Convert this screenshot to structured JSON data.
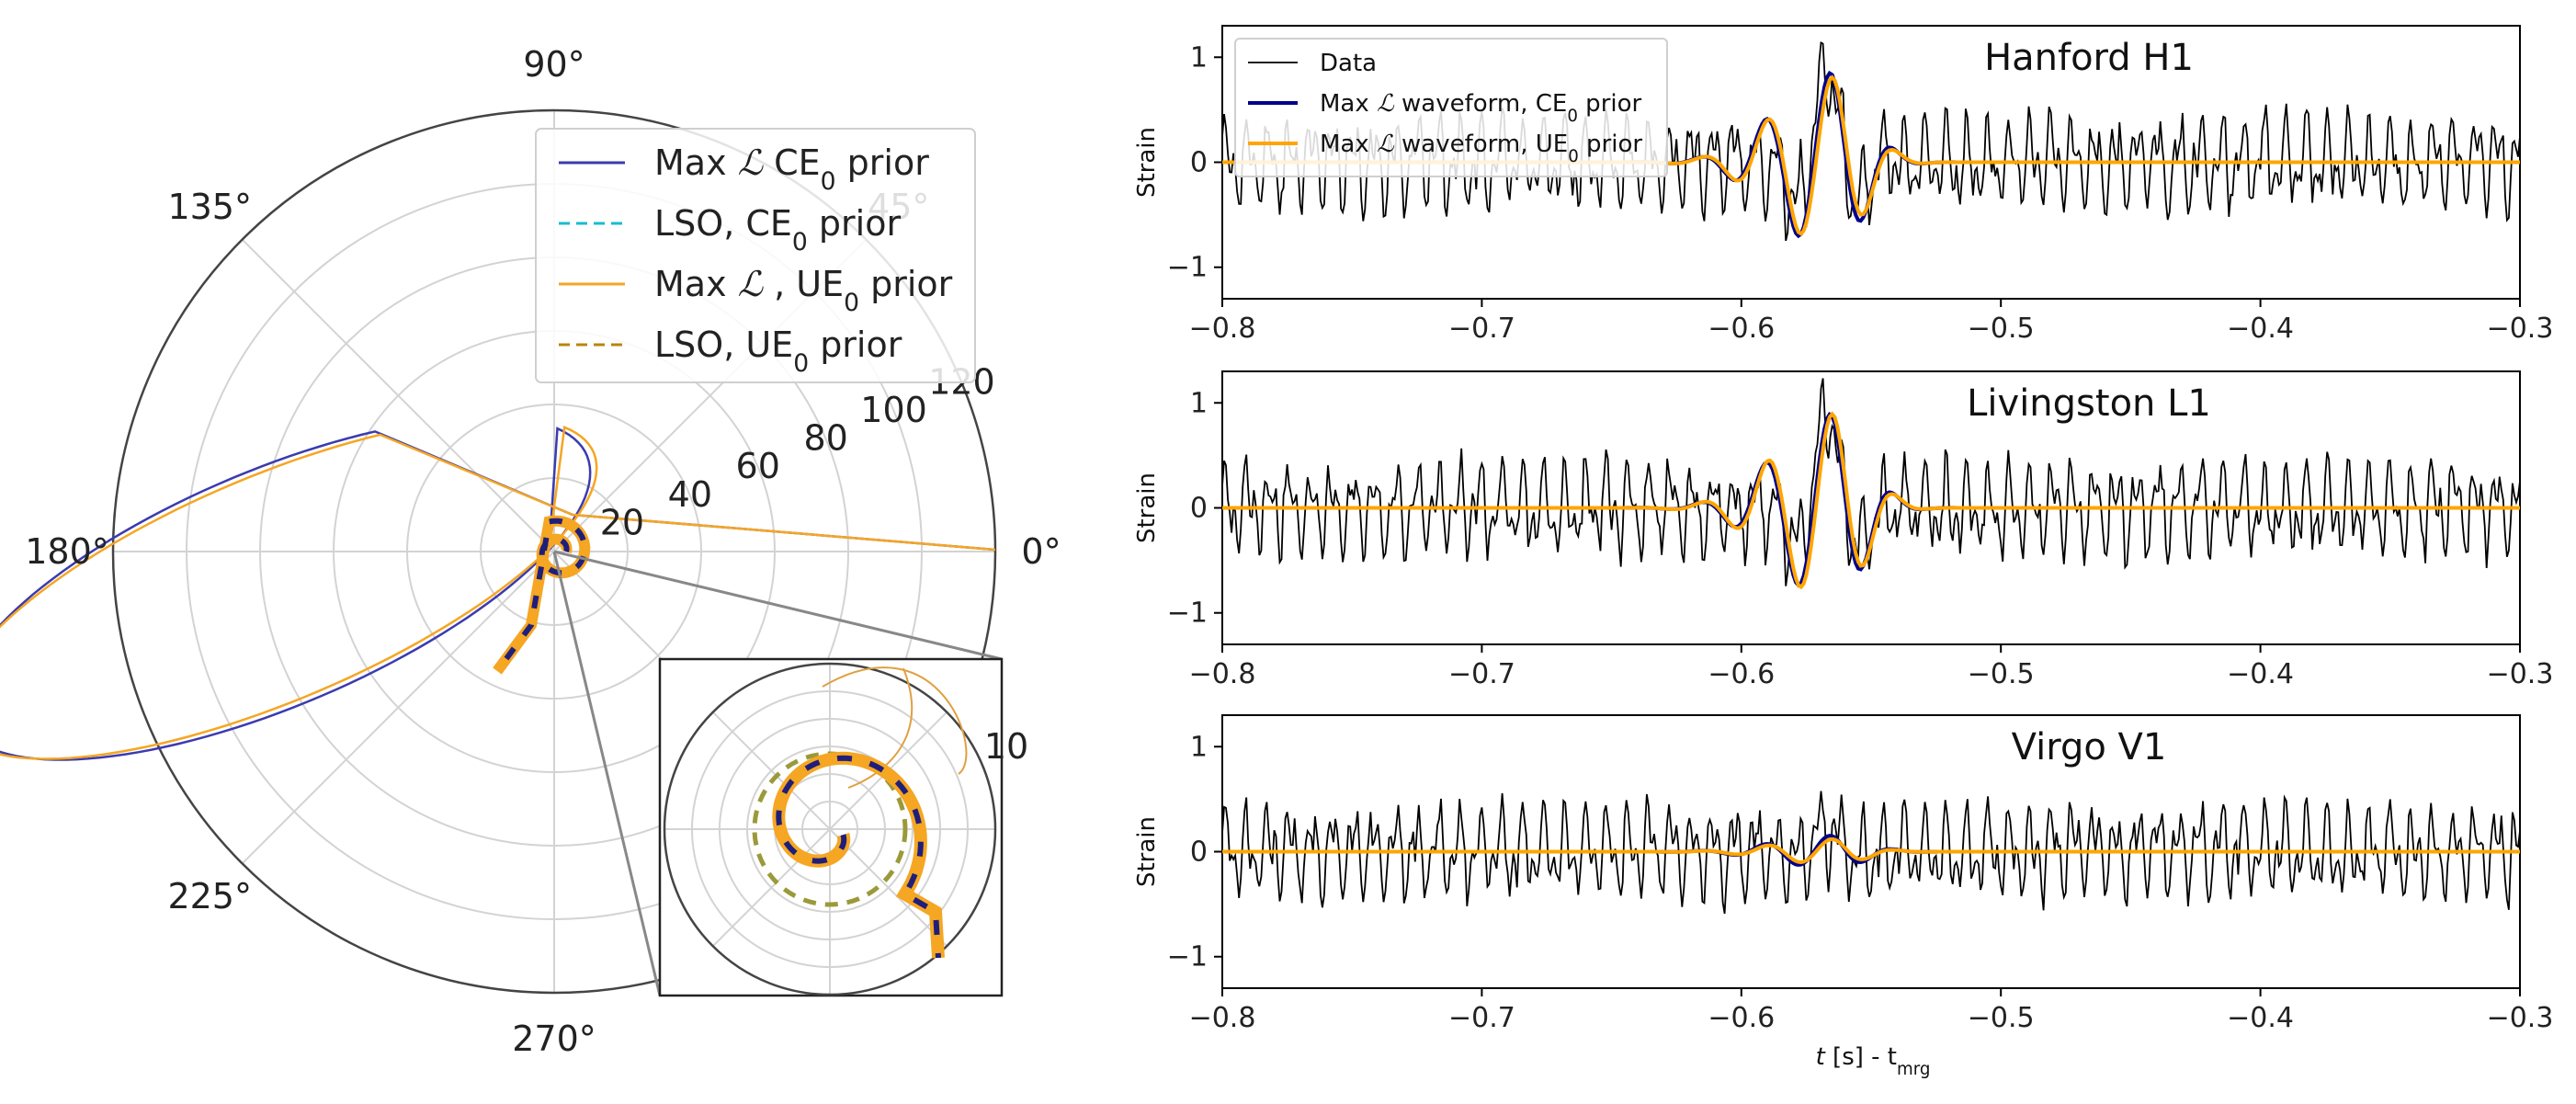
{
  "chart_data": [
    {
      "type": "polar",
      "theta_tick_labels": [
        "0°",
        "45°",
        "90°",
        "135°",
        "180°",
        "225°",
        "270°"
      ],
      "r_tick_labels": [
        "20",
        "40",
        "60",
        "80",
        "100",
        "120"
      ],
      "r_max": 120,
      "inset_r_tick_label": "10",
      "inset_r_max": 12,
      "legend": [
        {
          "label_prefix": "Max ",
          "script_L": "ℒ",
          "label_mid": " CE",
          "sub": "0",
          "label_suffix": " prior",
          "style": "solid",
          "color": "#3b3bb0"
        },
        {
          "label_prefix": "LSO, CE",
          "script_L": "",
          "label_mid": "",
          "sub": "0",
          "label_suffix": " prior",
          "style": "dashed",
          "color": "#17becf"
        },
        {
          "label_prefix": "Max ",
          "script_L": "ℒ",
          "label_mid": " , UE",
          "sub": "0",
          "label_suffix": " prior",
          "style": "solid",
          "color": "#f5a623"
        },
        {
          "label_prefix": "LSO, UE",
          "script_L": "",
          "label_mid": "",
          "sub": "0",
          "label_suffix": " prior",
          "style": "dashed",
          "color": "#b8860b"
        }
      ]
    },
    {
      "type": "line",
      "panels": [
        {
          "title": "Hanford H1",
          "show_legend": true,
          "seed": 11,
          "ce_amp": 1.0,
          "ue_amp": 0.95
        },
        {
          "title": "Livingston L1",
          "show_legend": false,
          "seed": 23,
          "ce_amp": 1.05,
          "ue_amp": 1.05
        },
        {
          "title": "Virgo V1",
          "show_legend": false,
          "seed": 37,
          "ce_amp": 0.18,
          "ue_amp": 0.14
        }
      ],
      "xlim": [
        -0.8,
        -0.3
      ],
      "ylim": [
        -1.3,
        1.3
      ],
      "x_tick_labels": [
        "−0.8",
        "−0.7",
        "−0.6",
        "−0.5",
        "−0.4",
        "−0.3"
      ],
      "y_tick_labels": [
        "1",
        "0",
        "−1"
      ],
      "ylabel": "Strain",
      "xlabel_t": "t",
      "xlabel_mid": " [s] - t",
      "xlabel_sub": "mrg",
      "legend": [
        {
          "label": "Data",
          "color": "#000000"
        },
        {
          "label_prefix": "Max ",
          "script_L": "ℒ",
          "label_mid": " waveform, CE",
          "sub": "0",
          "label_suffix": " prior",
          "color": "#00008b"
        },
        {
          "label_prefix": "Max ",
          "script_L": "ℒ",
          "label_mid": " waveform, UE",
          "sub": "0",
          "label_suffix": " prior",
          "color": "#ffa500"
        }
      ]
    }
  ]
}
